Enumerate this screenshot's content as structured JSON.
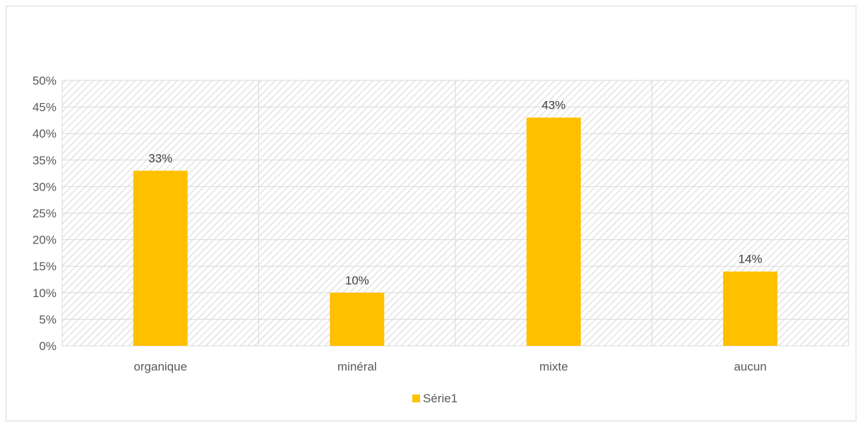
{
  "chart_data": {
    "type": "bar",
    "categories": [
      "organique",
      "minéral",
      "mixte",
      "aucun"
    ],
    "series": [
      {
        "name": "Série1",
        "values": [
          0.33,
          0.1,
          0.43,
          0.14
        ],
        "color": "#FFC000"
      }
    ],
    "data_labels": [
      "33%",
      "10%",
      "43%",
      "14%"
    ],
    "ylim": [
      0,
      0.5
    ],
    "yticks": [
      0,
      0.05,
      0.1,
      0.15,
      0.2,
      0.25,
      0.3,
      0.35,
      0.4,
      0.45,
      0.5
    ],
    "ytick_labels": [
      "0%",
      "5%",
      "10%",
      "15%",
      "20%",
      "25%",
      "30%",
      "35%",
      "40%",
      "45%",
      "50%"
    ],
    "grid": true,
    "plot_background": "hatched",
    "legend": {
      "position": "bottom",
      "entries": [
        "Série1"
      ]
    },
    "title": "",
    "xlabel": "",
    "ylabel": ""
  }
}
